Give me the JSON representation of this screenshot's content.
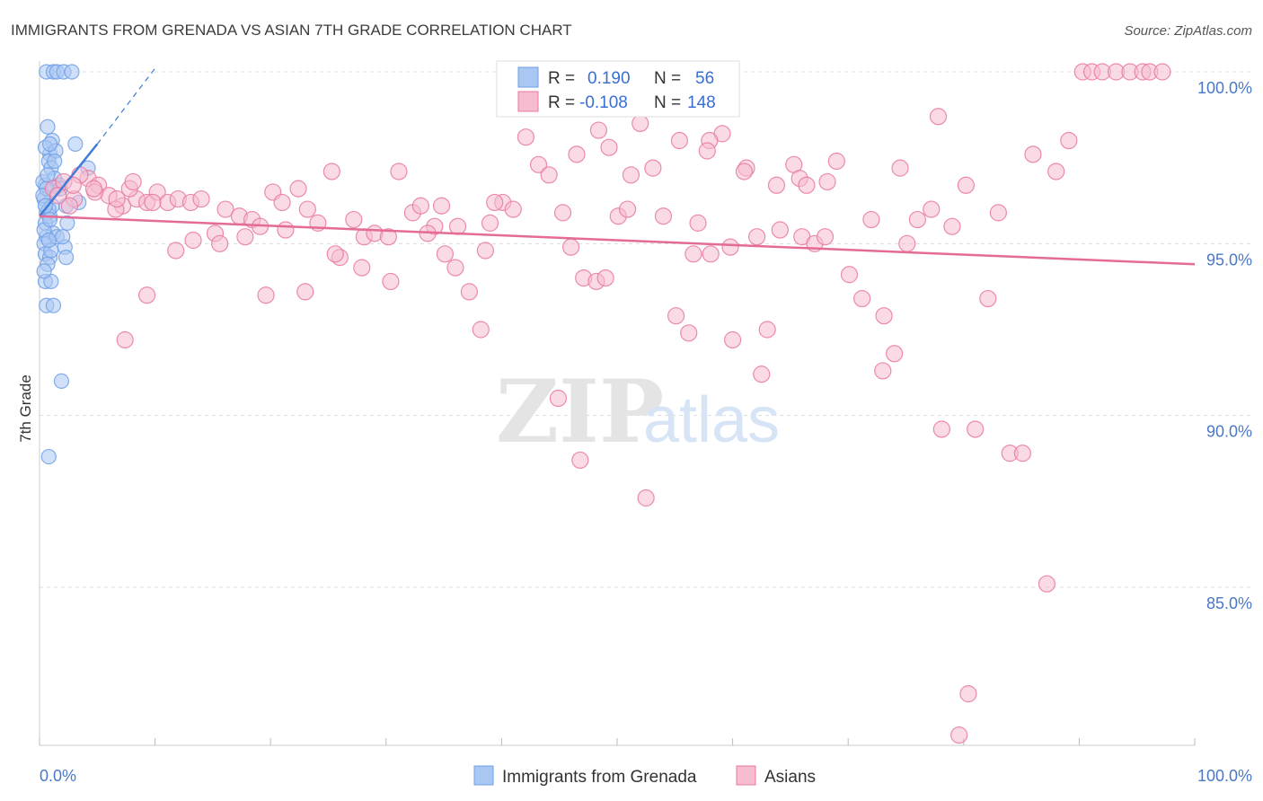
{
  "chart_data": {
    "type": "scatter",
    "title": "IMMIGRANTS FROM GRENADA VS ASIAN 7TH GRADE CORRELATION CHART",
    "source": "Source: ZipAtlas.com",
    "xlabel": "",
    "ylabel": "7th Grade",
    "xlim": [
      0,
      100
    ],
    "ylim": [
      80.5,
      100.5
    ],
    "x_tick_labels": [
      "0.0%",
      "100.0%"
    ],
    "y_ticks": [
      {
        "value": 100,
        "label": "100.0%"
      },
      {
        "value": 95,
        "label": "95.0%"
      },
      {
        "value": 90,
        "label": "90.0%"
      },
      {
        "value": 85,
        "label": "85.0%"
      }
    ],
    "watermark": {
      "zip": "ZIP",
      "atlas": "atlas"
    },
    "legend_box": {
      "rows": [
        {
          "r_label": "R =",
          "r_value": "0.190",
          "n_label": "N =",
          "n_value": "56"
        },
        {
          "r_label": "R =",
          "r_value": "-0.108",
          "n_label": "N =",
          "n_value": "148"
        }
      ]
    },
    "series": [
      {
        "name": "Immigrants from Grenada",
        "color": "#6f9fe6",
        "fill": "#a9c7f3",
        "trend": {
          "x0": 0,
          "y0": 95.8,
          "x1": 5,
          "y1": 97.9,
          "dash_to_x": 10,
          "dash_to_y": 100.1
        },
        "points": [
          [
            0.6,
            100
          ],
          [
            1.2,
            100
          ],
          [
            1.5,
            100
          ],
          [
            2.1,
            100
          ],
          [
            2.8,
            100
          ],
          [
            0.7,
            98.4
          ],
          [
            1.1,
            98
          ],
          [
            0.9,
            97.6
          ],
          [
            0.8,
            97.4
          ],
          [
            1.0,
            97.2
          ],
          [
            3.1,
            97.9
          ],
          [
            4.2,
            97.2
          ],
          [
            1.3,
            96.9
          ],
          [
            0.5,
            96.7
          ],
          [
            0.9,
            96.5
          ],
          [
            0.4,
            96.3
          ],
          [
            1.1,
            96.1
          ],
          [
            2.3,
            96.1
          ],
          [
            3.4,
            96.2
          ],
          [
            0.6,
            95.9
          ],
          [
            0.9,
            95.8
          ],
          [
            0.5,
            95.6
          ],
          [
            2.4,
            95.6
          ],
          [
            1.2,
            95.3
          ],
          [
            0.6,
            95.2
          ],
          [
            1.5,
            95.2
          ],
          [
            0.4,
            95.0
          ],
          [
            2.2,
            94.9
          ],
          [
            0.5,
            94.7
          ],
          [
            0.9,
            94.6
          ],
          [
            2.3,
            94.6
          ],
          [
            0.7,
            94.4
          ],
          [
            0.5,
            93.9
          ],
          [
            1.0,
            93.9
          ],
          [
            0.6,
            93.2
          ],
          [
            1.2,
            93.2
          ],
          [
            1.9,
            91.0
          ],
          [
            0.8,
            88.8
          ],
          [
            0.5,
            97.8
          ],
          [
            1.4,
            97.7
          ],
          [
            0.3,
            96.8
          ],
          [
            0.8,
            96.0
          ],
          [
            1.7,
            96.7
          ],
          [
            0.4,
            95.4
          ],
          [
            1.0,
            94.8
          ],
          [
            0.6,
            96.6
          ],
          [
            0.9,
            95.7
          ],
          [
            0.3,
            96.4
          ],
          [
            0.7,
            97.0
          ],
          [
            1.3,
            97.4
          ],
          [
            0.4,
            94.2
          ],
          [
            0.8,
            95.1
          ],
          [
            0.5,
            96.1
          ],
          [
            0.9,
            97.9
          ],
          [
            1.8,
            96.6
          ],
          [
            2.0,
            95.2
          ]
        ]
      },
      {
        "name": "Asians",
        "color": "#e9789f",
        "fill": "#f6bccf",
        "trend": {
          "x0": 0,
          "y0": 95.8,
          "x1": 100,
          "y1": 94.4
        },
        "points": [
          [
            1.2,
            96.6
          ],
          [
            2.1,
            96.8
          ],
          [
            3.0,
            96.3
          ],
          [
            4.2,
            96.9
          ],
          [
            5.1,
            96.7
          ],
          [
            6.0,
            96.4
          ],
          [
            7.2,
            96.1
          ],
          [
            8.4,
            96.3
          ],
          [
            9.3,
            96.2
          ],
          [
            10.2,
            96.5
          ],
          [
            11.1,
            96.2
          ],
          [
            12.0,
            96.3
          ],
          [
            13.1,
            96.2
          ],
          [
            3.5,
            97.0
          ],
          [
            6.6,
            96.0
          ],
          [
            2.6,
            96.1
          ],
          [
            1.6,
            96.4
          ],
          [
            4.8,
            96.5
          ],
          [
            7.8,
            96.6
          ],
          [
            9.8,
            96.2
          ],
          [
            14.0,
            96.3
          ],
          [
            15.2,
            95.3
          ],
          [
            16.1,
            96.0
          ],
          [
            17.3,
            95.8
          ],
          [
            18.4,
            95.7
          ],
          [
            19.1,
            95.5
          ],
          [
            20.2,
            96.5
          ],
          [
            21.3,
            95.4
          ],
          [
            22.4,
            96.6
          ],
          [
            23.2,
            96.0
          ],
          [
            24.1,
            95.6
          ],
          [
            25.3,
            97.1
          ],
          [
            26.0,
            94.6
          ],
          [
            27.2,
            95.7
          ],
          [
            28.1,
            95.2
          ],
          [
            29.0,
            95.3
          ],
          [
            30.2,
            95.2
          ],
          [
            31.1,
            97.1
          ],
          [
            32.3,
            95.9
          ],
          [
            33.0,
            96.1
          ],
          [
            34.2,
            95.5
          ],
          [
            35.1,
            94.7
          ],
          [
            36.0,
            94.3
          ],
          [
            37.2,
            93.6
          ],
          [
            38.2,
            92.5
          ],
          [
            39.0,
            95.6
          ],
          [
            40.1,
            96.2
          ],
          [
            41.0,
            96.0
          ],
          [
            42.1,
            98.1
          ],
          [
            43.2,
            97.3
          ],
          [
            44.1,
            97.0
          ],
          [
            45.3,
            95.9
          ],
          [
            46.0,
            94.9
          ],
          [
            47.1,
            94.0
          ],
          [
            48.2,
            93.9
          ],
          [
            49.0,
            94.0
          ],
          [
            50.1,
            95.8
          ],
          [
            51.2,
            97.0
          ],
          [
            52.0,
            98.5
          ],
          [
            53.1,
            97.2
          ],
          [
            54.0,
            95.8
          ],
          [
            55.1,
            92.9
          ],
          [
            56.2,
            92.4
          ],
          [
            57.0,
            95.6
          ],
          [
            58.1,
            94.7
          ],
          [
            59.1,
            98.2
          ],
          [
            60.0,
            92.2
          ],
          [
            61.2,
            97.2
          ],
          [
            62.1,
            95.2
          ],
          [
            63.0,
            92.5
          ],
          [
            64.1,
            95.4
          ],
          [
            65.3,
            97.3
          ],
          [
            66.0,
            95.2
          ],
          [
            67.1,
            95.0
          ],
          [
            68.2,
            96.8
          ],
          [
            69.0,
            97.4
          ],
          [
            70.1,
            94.1
          ],
          [
            71.2,
            93.4
          ],
          [
            72.0,
            95.7
          ],
          [
            73.1,
            92.9
          ],
          [
            74.0,
            91.8
          ],
          [
            75.1,
            95.0
          ],
          [
            76.0,
            95.7
          ],
          [
            77.2,
            96.0
          ],
          [
            78.1,
            89.6
          ],
          [
            79.0,
            95.5
          ],
          [
            80.2,
            96.7
          ],
          [
            81.0,
            89.6
          ],
          [
            82.1,
            93.4
          ],
          [
            83.0,
            95.9
          ],
          [
            84.0,
            88.9
          ],
          [
            85.1,
            88.9
          ],
          [
            86.0,
            97.6
          ],
          [
            87.2,
            85.1
          ],
          [
            88.0,
            97.1
          ],
          [
            89.1,
            98.0
          ],
          [
            90.3,
            100.0
          ],
          [
            91.1,
            100.0
          ],
          [
            92.0,
            100.0
          ],
          [
            93.2,
            100.0
          ],
          [
            94.4,
            100.0
          ],
          [
            95.5,
            100.0
          ],
          [
            96.1,
            100.0
          ],
          [
            97.2,
            100.0
          ],
          [
            46.5,
            97.6
          ],
          [
            58.0,
            98.0
          ],
          [
            59.8,
            94.9
          ],
          [
            65.8,
            96.9
          ],
          [
            66.4,
            96.7
          ],
          [
            68.0,
            95.2
          ],
          [
            73.0,
            91.3
          ],
          [
            74.5,
            97.2
          ],
          [
            77.8,
            98.7
          ],
          [
            79.6,
            80.7
          ],
          [
            80.4,
            81.9
          ],
          [
            62.5,
            91.2
          ],
          [
            52.5,
            87.6
          ],
          [
            49.3,
            97.8
          ],
          [
            50.9,
            96.0
          ],
          [
            46.8,
            88.7
          ],
          [
            44.9,
            90.5
          ],
          [
            57.8,
            97.7
          ],
          [
            56.6,
            94.7
          ],
          [
            63.8,
            96.7
          ],
          [
            61.0,
            97.1
          ],
          [
            55.4,
            98.0
          ],
          [
            48.4,
            98.3
          ],
          [
            39.4,
            96.2
          ],
          [
            38.6,
            94.8
          ],
          [
            36.2,
            95.5
          ],
          [
            34.8,
            96.1
          ],
          [
            33.6,
            95.3
          ],
          [
            30.4,
            93.9
          ],
          [
            27.9,
            94.3
          ],
          [
            25.6,
            94.7
          ],
          [
            23.0,
            93.6
          ],
          [
            21.0,
            96.2
          ],
          [
            19.6,
            93.5
          ],
          [
            17.8,
            95.2
          ],
          [
            15.6,
            95.0
          ],
          [
            13.3,
            95.1
          ],
          [
            11.8,
            94.8
          ],
          [
            9.3,
            93.5
          ],
          [
            7.4,
            92.2
          ],
          [
            4.7,
            96.6
          ],
          [
            2.9,
            96.7
          ],
          [
            6.7,
            96.3
          ],
          [
            8.1,
            96.8
          ]
        ]
      }
    ],
    "bottom_legend": [
      "Immigrants from Grenada",
      "Asians"
    ]
  }
}
